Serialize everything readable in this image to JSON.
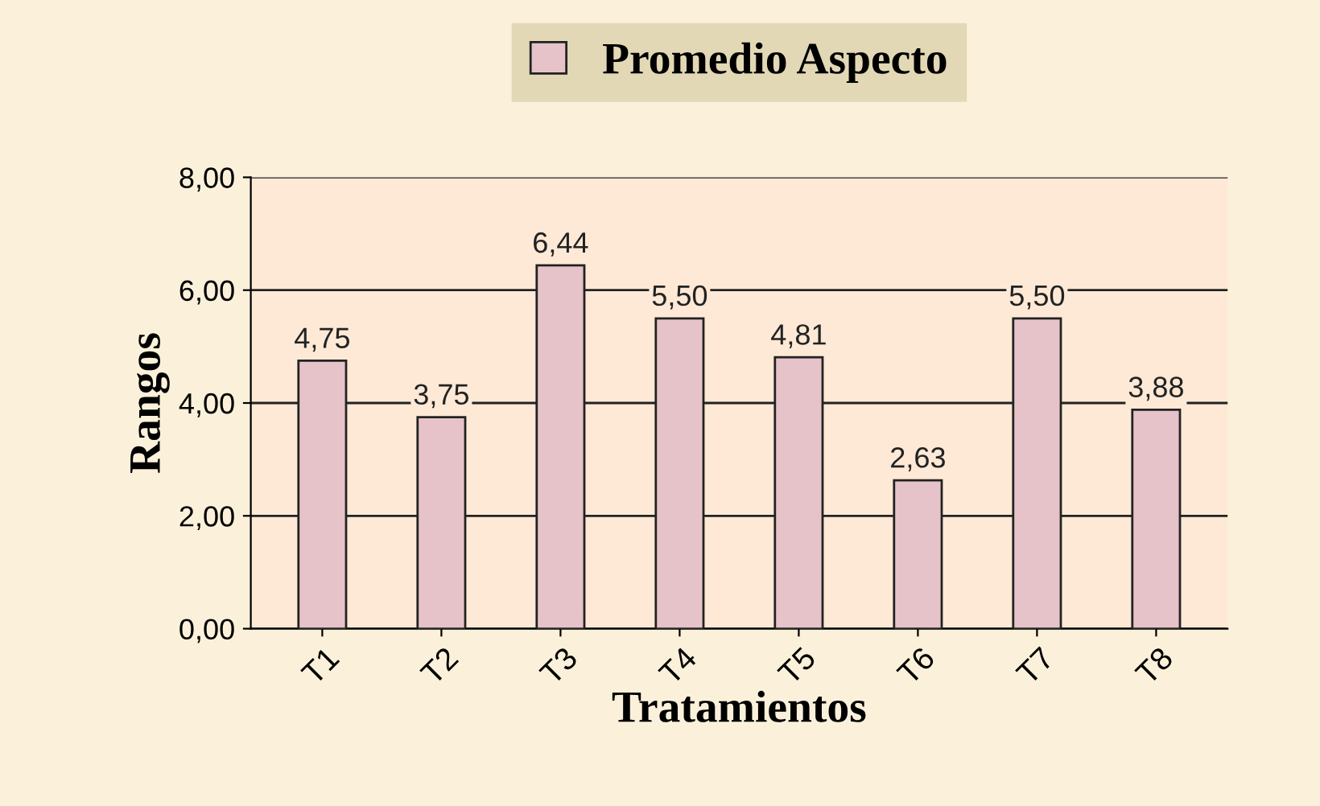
{
  "chart_data": {
    "type": "bar",
    "xlabel": "Tratamientos",
    "ylabel": "Rangos",
    "categories": [
      "T1",
      "T2",
      "T3",
      "T4",
      "T5",
      "T6",
      "T7",
      "T8"
    ],
    "series": [
      {
        "name": "Promedio Aspecto",
        "color": "#e6c3c8",
        "values": [
          4.75,
          3.75,
          6.44,
          5.5,
          4.81,
          2.63,
          5.5,
          3.88
        ],
        "value_labels": [
          "4,75",
          "3,75",
          "6,44",
          "5,50",
          "4,81",
          "2,63",
          "5,50",
          "3,88"
        ]
      }
    ],
    "ylim": [
      0,
      8
    ],
    "yticks": [
      {
        "value": 0,
        "label": "0,00"
      },
      {
        "value": 2,
        "label": "2,00"
      },
      {
        "value": 4,
        "label": "4,00"
      },
      {
        "value": 6,
        "label": "6,00"
      },
      {
        "value": 8,
        "label": "8,00"
      }
    ],
    "grid": "y",
    "legend": "top"
  }
}
